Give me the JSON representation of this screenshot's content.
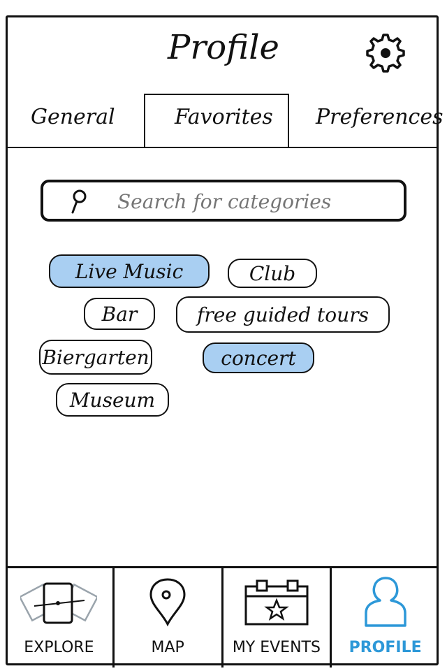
{
  "header": {
    "title": "Profile"
  },
  "tabs": [
    {
      "label": "General"
    },
    {
      "label": "Favorites"
    },
    {
      "label": "Preferences"
    }
  ],
  "search": {
    "placeholder": "Search for categories"
  },
  "categories": [
    {
      "label": "Live Music",
      "selected": true
    },
    {
      "label": "Club",
      "selected": false
    },
    {
      "label": "Bar",
      "selected": false
    },
    {
      "label": "free guided tours",
      "selected": false
    },
    {
      "label": "Biergarten",
      "selected": false
    },
    {
      "label": "concert",
      "selected": true
    },
    {
      "label": "Museum",
      "selected": false
    }
  ],
  "bottom_nav": [
    {
      "label": "EXPLORE",
      "icon": "cards-icon",
      "active": false
    },
    {
      "label": "MAP",
      "icon": "map-pin-icon",
      "active": false
    },
    {
      "label": "MY EVENTS",
      "icon": "calendar-icon",
      "active": false
    },
    {
      "label": "PROFILE",
      "icon": "user-icon",
      "active": true
    }
  ],
  "colors": {
    "selected_chip": "#a9cff2",
    "active_nav": "#2d98d8"
  }
}
